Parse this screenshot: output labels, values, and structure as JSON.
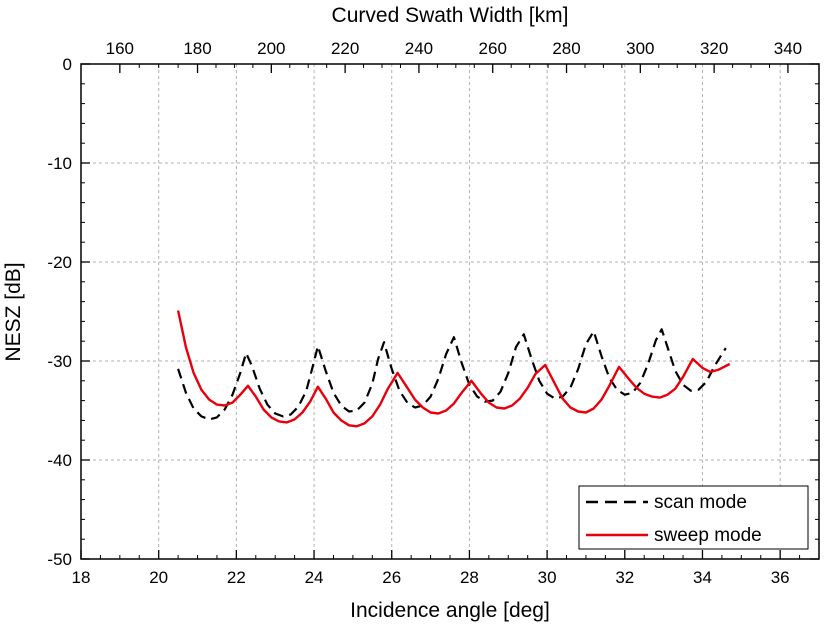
{
  "chart_data": {
    "type": "line",
    "xlabel": "Incidence angle [deg]",
    "ylabel": "NESZ [dB]",
    "x2label": "Curved Swath Width [km]",
    "xlim": [
      18,
      37
    ],
    "ylim": [
      -50,
      0
    ],
    "x_ticks": [
      18,
      20,
      22,
      24,
      26,
      28,
      30,
      32,
      34,
      36
    ],
    "y_ticks": [
      0,
      -10,
      -20,
      -30,
      -40,
      -50
    ],
    "x2_ticks": [
      160,
      180,
      200,
      220,
      240,
      260,
      280,
      300,
      320,
      340
    ],
    "x2_tick_positions_deg": [
      19.0,
      21.0,
      22.9,
      24.8,
      26.7,
      28.6,
      30.5,
      32.4,
      34.3,
      36.2
    ],
    "grid": true,
    "legend_position": "bottom-right",
    "series": [
      {
        "name": "scan mode",
        "color": "#000000",
        "style": "dashed",
        "points": [
          [
            20.5,
            -30.8
          ],
          [
            20.7,
            -33.2
          ],
          [
            20.9,
            -34.8
          ],
          [
            21.1,
            -35.6
          ],
          [
            21.3,
            -35.9
          ],
          [
            21.5,
            -35.7
          ],
          [
            21.7,
            -34.9
          ],
          [
            21.9,
            -33.4
          ],
          [
            22.1,
            -31.2
          ],
          [
            22.25,
            -29.2
          ],
          [
            22.4,
            -30.5
          ],
          [
            22.6,
            -32.8
          ],
          [
            22.8,
            -34.4
          ],
          [
            23.0,
            -35.3
          ],
          [
            23.2,
            -35.6
          ],
          [
            23.4,
            -35.4
          ],
          [
            23.6,
            -34.6
          ],
          [
            23.8,
            -33.0
          ],
          [
            23.95,
            -30.8
          ],
          [
            24.1,
            -28.5
          ],
          [
            24.3,
            -31.0
          ],
          [
            24.5,
            -33.2
          ],
          [
            24.7,
            -34.5
          ],
          [
            24.9,
            -35.1
          ],
          [
            25.1,
            -35.0
          ],
          [
            25.3,
            -34.2
          ],
          [
            25.5,
            -32.3
          ],
          [
            25.65,
            -29.8
          ],
          [
            25.8,
            -28.1
          ],
          [
            26.0,
            -30.8
          ],
          [
            26.2,
            -33.0
          ],
          [
            26.4,
            -34.2
          ],
          [
            26.6,
            -34.7
          ],
          [
            26.8,
            -34.5
          ],
          [
            27.0,
            -33.6
          ],
          [
            27.2,
            -31.8
          ],
          [
            27.4,
            -29.3
          ],
          [
            27.6,
            -27.6
          ],
          [
            27.8,
            -30.2
          ],
          [
            28.0,
            -32.4
          ],
          [
            28.2,
            -33.6
          ],
          [
            28.4,
            -34.1
          ],
          [
            28.6,
            -34.0
          ],
          [
            28.8,
            -33.1
          ],
          [
            29.0,
            -31.2
          ],
          [
            29.2,
            -28.6
          ],
          [
            29.4,
            -27.3
          ],
          [
            29.6,
            -29.8
          ],
          [
            29.8,
            -32.0
          ],
          [
            30.0,
            -33.3
          ],
          [
            30.2,
            -33.8
          ],
          [
            30.4,
            -33.6
          ],
          [
            30.6,
            -32.7
          ],
          [
            30.8,
            -30.8
          ],
          [
            31.0,
            -28.3
          ],
          [
            31.2,
            -27.0
          ],
          [
            31.4,
            -29.5
          ],
          [
            31.6,
            -31.7
          ],
          [
            31.8,
            -32.9
          ],
          [
            32.0,
            -33.4
          ],
          [
            32.2,
            -33.2
          ],
          [
            32.4,
            -32.2
          ],
          [
            32.6,
            -30.3
          ],
          [
            32.8,
            -27.9
          ],
          [
            32.95,
            -26.8
          ],
          [
            33.1,
            -28.6
          ],
          [
            33.3,
            -31.0
          ],
          [
            33.5,
            -32.4
          ],
          [
            33.7,
            -33.0
          ],
          [
            33.9,
            -32.9
          ],
          [
            34.1,
            -32.1
          ],
          [
            34.3,
            -30.6
          ],
          [
            34.5,
            -29.3
          ],
          [
            34.6,
            -28.7
          ]
        ]
      },
      {
        "name": "sweep mode",
        "color": "#e8000b",
        "style": "solid",
        "points": [
          [
            20.5,
            -24.9
          ],
          [
            20.7,
            -28.6
          ],
          [
            20.9,
            -31.2
          ],
          [
            21.1,
            -32.9
          ],
          [
            21.3,
            -33.9
          ],
          [
            21.5,
            -34.4
          ],
          [
            21.7,
            -34.5
          ],
          [
            21.9,
            -34.2
          ],
          [
            22.1,
            -33.4
          ],
          [
            22.3,
            -32.5
          ],
          [
            22.5,
            -33.6
          ],
          [
            22.7,
            -34.9
          ],
          [
            22.9,
            -35.7
          ],
          [
            23.1,
            -36.1
          ],
          [
            23.3,
            -36.2
          ],
          [
            23.5,
            -35.9
          ],
          [
            23.7,
            -35.2
          ],
          [
            23.9,
            -34.1
          ],
          [
            24.1,
            -32.6
          ],
          [
            24.3,
            -33.8
          ],
          [
            24.5,
            -35.2
          ],
          [
            24.7,
            -36.0
          ],
          [
            24.9,
            -36.5
          ],
          [
            25.1,
            -36.6
          ],
          [
            25.3,
            -36.3
          ],
          [
            25.5,
            -35.6
          ],
          [
            25.7,
            -34.4
          ],
          [
            25.9,
            -32.8
          ],
          [
            26.15,
            -31.2
          ],
          [
            26.4,
            -32.7
          ],
          [
            26.6,
            -33.9
          ],
          [
            26.8,
            -34.7
          ],
          [
            27.0,
            -35.2
          ],
          [
            27.2,
            -35.3
          ],
          [
            27.4,
            -35.0
          ],
          [
            27.6,
            -34.3
          ],
          [
            27.8,
            -33.2
          ],
          [
            28.05,
            -32.0
          ],
          [
            28.3,
            -33.3
          ],
          [
            28.5,
            -34.2
          ],
          [
            28.7,
            -34.7
          ],
          [
            28.9,
            -34.8
          ],
          [
            29.1,
            -34.5
          ],
          [
            29.3,
            -33.8
          ],
          [
            29.5,
            -32.7
          ],
          [
            29.7,
            -31.3
          ],
          [
            29.95,
            -30.4
          ],
          [
            30.2,
            -32.3
          ],
          [
            30.4,
            -33.8
          ],
          [
            30.6,
            -34.7
          ],
          [
            30.8,
            -35.1
          ],
          [
            31.0,
            -35.2
          ],
          [
            31.2,
            -34.8
          ],
          [
            31.4,
            -33.9
          ],
          [
            31.6,
            -32.5
          ],
          [
            31.85,
            -30.6
          ],
          [
            32.1,
            -31.8
          ],
          [
            32.3,
            -32.7
          ],
          [
            32.5,
            -33.3
          ],
          [
            32.7,
            -33.6
          ],
          [
            32.9,
            -33.7
          ],
          [
            33.1,
            -33.4
          ],
          [
            33.3,
            -32.8
          ],
          [
            33.5,
            -31.6
          ],
          [
            33.75,
            -29.8
          ],
          [
            34.0,
            -30.7
          ],
          [
            34.2,
            -31.1
          ],
          [
            34.4,
            -30.9
          ],
          [
            34.7,
            -30.3
          ]
        ]
      }
    ]
  }
}
